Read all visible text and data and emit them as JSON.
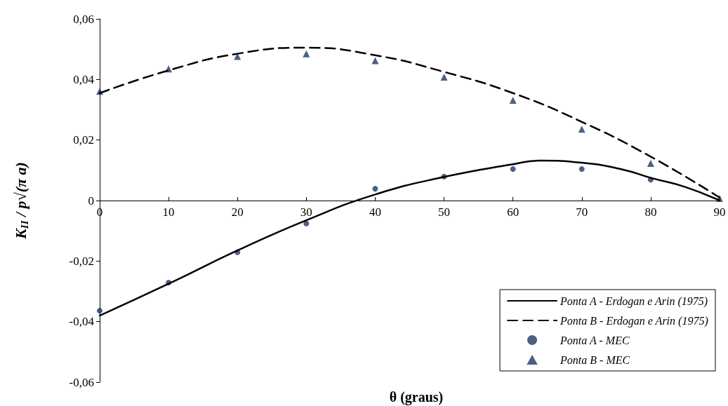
{
  "chart_data": {
    "type": "line",
    "xlabel": "θ (graus)",
    "ylabel": "K$_{II}$ / p√(π a)",
    "xlim": [
      0,
      90
    ],
    "xticks": [
      0,
      10,
      20,
      30,
      40,
      50,
      60,
      70,
      80,
      90
    ],
    "ylim": [
      -0.06,
      0.06
    ],
    "yticks": [
      {
        "value": -0.06,
        "label": "-0,06"
      },
      {
        "value": -0.04,
        "label": "-0,04"
      },
      {
        "value": -0.02,
        "label": "-0,02"
      },
      {
        "value": 0,
        "label": "0"
      },
      {
        "value": 0.02,
        "label": "0,02"
      },
      {
        "value": 0.04,
        "label": "0,04"
      },
      {
        "value": 0.06,
        "label": "0,06"
      }
    ],
    "grid": false,
    "legend": "bottom right",
    "series": [
      {
        "name": "Ponta A - Erdogan e Arin (1975)",
        "type": "line",
        "color": "#000000",
        "line_style": "solid",
        "marker": "none",
        "x": [
          0,
          10,
          20,
          30,
          40,
          50,
          60,
          64,
          70,
          76,
          80,
          85,
          90
        ],
        "values": [
          -0.038,
          -0.0275,
          -0.0165,
          -0.0065,
          0.002,
          0.0078,
          0.012,
          0.0132,
          0.0125,
          0.0102,
          0.0075,
          0.0045,
          0.0
        ]
      },
      {
        "name": "Ponta B - Erdogan e Arin (1975)",
        "type": "line",
        "color": "#000000",
        "line_style": "dashed",
        "marker": "none",
        "x": [
          0,
          10,
          20,
          30,
          40,
          50,
          60,
          70,
          80,
          90
        ],
        "values": [
          0.0355,
          0.043,
          0.0485,
          0.0505,
          0.048,
          0.0425,
          0.0355,
          0.026,
          0.0145,
          0.001
        ]
      },
      {
        "name": "Ponta A - MEC",
        "type": "scatter",
        "color": "#1f3864",
        "marker": "circle",
        "x": [
          0,
          10,
          20,
          30,
          40,
          50,
          60,
          70,
          80
        ],
        "values": [
          -0.0364,
          -0.0271,
          -0.0171,
          -0.0076,
          0.0039,
          0.0079,
          0.0104,
          0.0104,
          0.0069
        ]
      },
      {
        "name": "Ponta B - MEC",
        "type": "scatter",
        "color": "#1f3864",
        "marker": "triangle",
        "x": [
          0,
          10,
          20,
          30,
          40,
          50,
          60,
          70,
          80,
          90
        ],
        "values": [
          0.0361,
          0.0435,
          0.0476,
          0.0485,
          0.0462,
          0.0408,
          0.0331,
          0.0236,
          0.0123,
          0.0007
        ]
      }
    ]
  }
}
